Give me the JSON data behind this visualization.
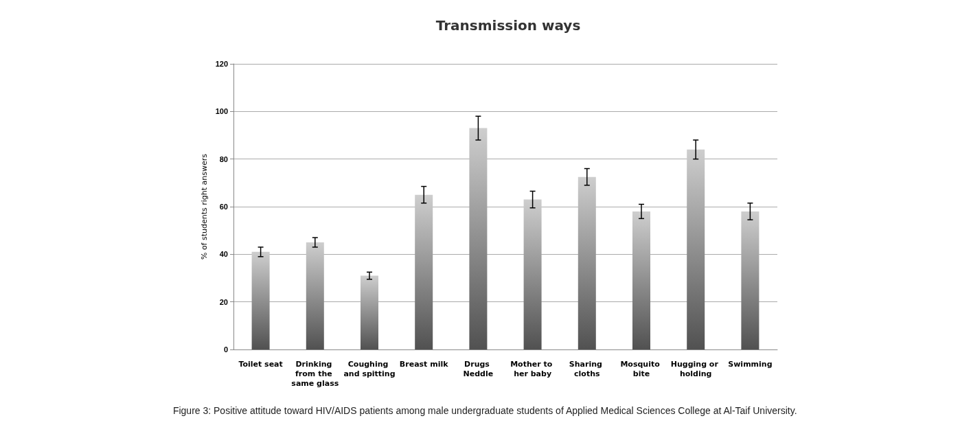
{
  "chart_data": {
    "type": "bar",
    "title": "Transmission ways",
    "ylabel": "% of students right answers",
    "categories": [
      "Toilet seat",
      "Drinking from the same glass",
      "Coughing and spitting",
      "Breast milk",
      "Drugs Neddle",
      "Mother to her baby",
      "Sharing cloths",
      "Mosquito bite",
      "Hugging or holding",
      "Swimming"
    ],
    "values": [
      41,
      45,
      31,
      65,
      93,
      63,
      72.5,
      58,
      84,
      58
    ],
    "errors": [
      2,
      2,
      1.5,
      3.5,
      5,
      3.5,
      3.5,
      3,
      4,
      3.5
    ],
    "color": "#b4b4b4",
    "ylim": [
      0,
      120
    ],
    "yticks": [
      0,
      20,
      40,
      60,
      80,
      100,
      120
    ],
    "grid": "y",
    "annotations": [
      "Figure 3: Positive attitude toward HIV/AIDS patients among male undergraduate students of Applied Medical Sciences College at Al-Taif University."
    ]
  }
}
